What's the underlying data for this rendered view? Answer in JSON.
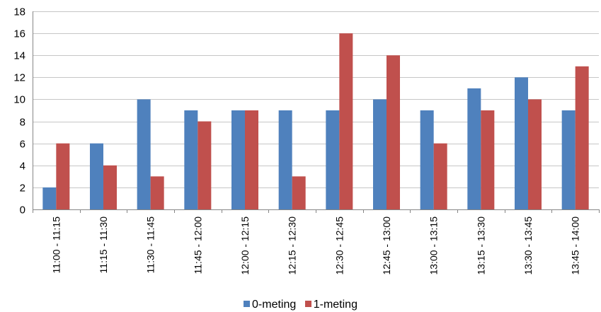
{
  "chart_data": {
    "type": "bar",
    "title": "",
    "xlabel": "",
    "ylabel": "",
    "ylim": [
      0,
      18
    ],
    "yticks": [
      0,
      2,
      4,
      6,
      8,
      10,
      12,
      14,
      16,
      18
    ],
    "grid": true,
    "legend_position": "bottom",
    "categories": [
      "11:00 - 11:15",
      "11:15 - 11:30",
      "11:30 - 11:45",
      "11:45 - 12:00",
      "12:00 - 12:15",
      "12:15 - 12:30",
      "12:30 - 12:45",
      "12:45 - 13:00",
      "13:00 - 13:15",
      "13:15 - 13:30",
      "13:30 - 13:45",
      "13:45 - 14:00"
    ],
    "series": [
      {
        "name": "0-meting",
        "color": "#4F81BD",
        "values": [
          2,
          6,
          10,
          9,
          9,
          9,
          9,
          10,
          9,
          11,
          12,
          9
        ]
      },
      {
        "name": "1-meting",
        "color": "#C0504D",
        "values": [
          6,
          4,
          3,
          8,
          9,
          3,
          16,
          14,
          6,
          9,
          10,
          13
        ]
      }
    ]
  }
}
